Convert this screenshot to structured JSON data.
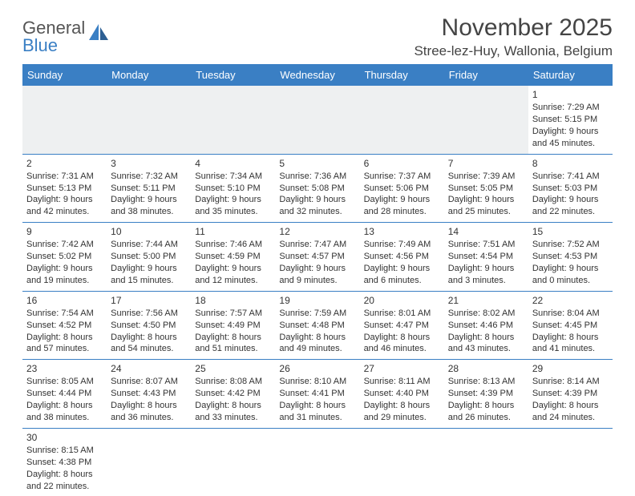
{
  "logo": {
    "text1": "General",
    "text2": "Blue"
  },
  "title": "November 2025",
  "location": "Stree-lez-Huy, Wallonia, Belgium",
  "colors": {
    "header_bg": "#3a7fc4",
    "header_text": "#ffffff",
    "row_divider": "#3a7fc4",
    "pad_bg": "#eef0f1",
    "text": "#333333"
  },
  "day_headers": [
    "Sunday",
    "Monday",
    "Tuesday",
    "Wednesday",
    "Thursday",
    "Friday",
    "Saturday"
  ],
  "days": {
    "1": {
      "sunrise": "7:29 AM",
      "sunset": "5:15 PM",
      "dl_h": 9,
      "dl_m": 45
    },
    "2": {
      "sunrise": "7:31 AM",
      "sunset": "5:13 PM",
      "dl_h": 9,
      "dl_m": 42
    },
    "3": {
      "sunrise": "7:32 AM",
      "sunset": "5:11 PM",
      "dl_h": 9,
      "dl_m": 38
    },
    "4": {
      "sunrise": "7:34 AM",
      "sunset": "5:10 PM",
      "dl_h": 9,
      "dl_m": 35
    },
    "5": {
      "sunrise": "7:36 AM",
      "sunset": "5:08 PM",
      "dl_h": 9,
      "dl_m": 32
    },
    "6": {
      "sunrise": "7:37 AM",
      "sunset": "5:06 PM",
      "dl_h": 9,
      "dl_m": 28
    },
    "7": {
      "sunrise": "7:39 AM",
      "sunset": "5:05 PM",
      "dl_h": 9,
      "dl_m": 25
    },
    "8": {
      "sunrise": "7:41 AM",
      "sunset": "5:03 PM",
      "dl_h": 9,
      "dl_m": 22
    },
    "9": {
      "sunrise": "7:42 AM",
      "sunset": "5:02 PM",
      "dl_h": 9,
      "dl_m": 19
    },
    "10": {
      "sunrise": "7:44 AM",
      "sunset": "5:00 PM",
      "dl_h": 9,
      "dl_m": 15
    },
    "11": {
      "sunrise": "7:46 AM",
      "sunset": "4:59 PM",
      "dl_h": 9,
      "dl_m": 12
    },
    "12": {
      "sunrise": "7:47 AM",
      "sunset": "4:57 PM",
      "dl_h": 9,
      "dl_m": 9
    },
    "13": {
      "sunrise": "7:49 AM",
      "sunset": "4:56 PM",
      "dl_h": 9,
      "dl_m": 6
    },
    "14": {
      "sunrise": "7:51 AM",
      "sunset": "4:54 PM",
      "dl_h": 9,
      "dl_m": 3
    },
    "15": {
      "sunrise": "7:52 AM",
      "sunset": "4:53 PM",
      "dl_h": 9,
      "dl_m": 0
    },
    "16": {
      "sunrise": "7:54 AM",
      "sunset": "4:52 PM",
      "dl_h": 8,
      "dl_m": 57
    },
    "17": {
      "sunrise": "7:56 AM",
      "sunset": "4:50 PM",
      "dl_h": 8,
      "dl_m": 54
    },
    "18": {
      "sunrise": "7:57 AM",
      "sunset": "4:49 PM",
      "dl_h": 8,
      "dl_m": 51
    },
    "19": {
      "sunrise": "7:59 AM",
      "sunset": "4:48 PM",
      "dl_h": 8,
      "dl_m": 49
    },
    "20": {
      "sunrise": "8:01 AM",
      "sunset": "4:47 PM",
      "dl_h": 8,
      "dl_m": 46
    },
    "21": {
      "sunrise": "8:02 AM",
      "sunset": "4:46 PM",
      "dl_h": 8,
      "dl_m": 43
    },
    "22": {
      "sunrise": "8:04 AM",
      "sunset": "4:45 PM",
      "dl_h": 8,
      "dl_m": 41
    },
    "23": {
      "sunrise": "8:05 AM",
      "sunset": "4:44 PM",
      "dl_h": 8,
      "dl_m": 38
    },
    "24": {
      "sunrise": "8:07 AM",
      "sunset": "4:43 PM",
      "dl_h": 8,
      "dl_m": 36
    },
    "25": {
      "sunrise": "8:08 AM",
      "sunset": "4:42 PM",
      "dl_h": 8,
      "dl_m": 33
    },
    "26": {
      "sunrise": "8:10 AM",
      "sunset": "4:41 PM",
      "dl_h": 8,
      "dl_m": 31
    },
    "27": {
      "sunrise": "8:11 AM",
      "sunset": "4:40 PM",
      "dl_h": 8,
      "dl_m": 29
    },
    "28": {
      "sunrise": "8:13 AM",
      "sunset": "4:39 PM",
      "dl_h": 8,
      "dl_m": 26
    },
    "29": {
      "sunrise": "8:14 AM",
      "sunset": "4:39 PM",
      "dl_h": 8,
      "dl_m": 24
    },
    "30": {
      "sunrise": "8:15 AM",
      "sunset": "4:38 PM",
      "dl_h": 8,
      "dl_m": 22
    }
  },
  "grid": [
    [
      null,
      null,
      null,
      null,
      null,
      null,
      "1"
    ],
    [
      "2",
      "3",
      "4",
      "5",
      "6",
      "7",
      "8"
    ],
    [
      "9",
      "10",
      "11",
      "12",
      "13",
      "14",
      "15"
    ],
    [
      "16",
      "17",
      "18",
      "19",
      "20",
      "21",
      "22"
    ],
    [
      "23",
      "24",
      "25",
      "26",
      "27",
      "28",
      "29"
    ],
    [
      "30",
      null,
      null,
      null,
      null,
      null,
      null
    ]
  ],
  "labels": {
    "sunrise": "Sunrise: ",
    "sunset": "Sunset: ",
    "daylight1": "Daylight: ",
    "daylight2": " hours and ",
    "daylight3": " minutes."
  }
}
